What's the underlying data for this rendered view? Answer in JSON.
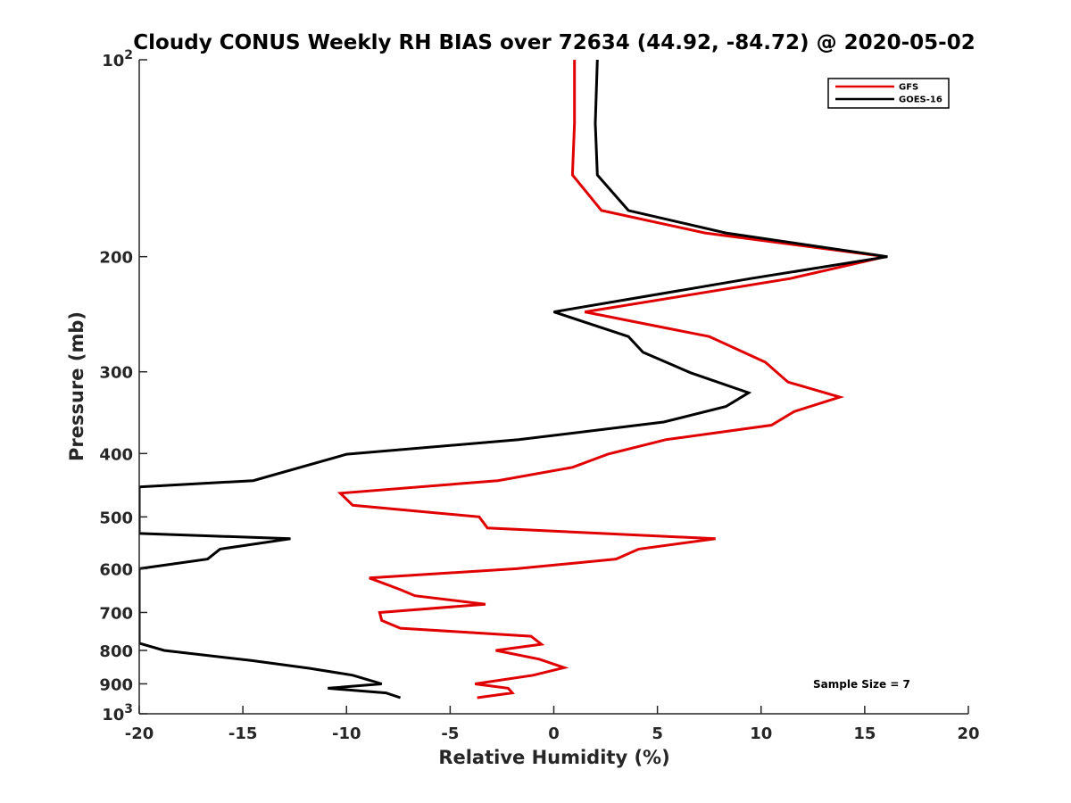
{
  "chart_data": {
    "type": "line",
    "title": "Cloudy CONUS Weekly RH BIAS over 72634 (44.92, -84.72) @ 2020-05-02",
    "xlabel": "Relative Humidity (%)",
    "ylabel": "Pressure (mb)",
    "xlim": [
      -20,
      20
    ],
    "ylim": [
      100,
      1000
    ],
    "yscale": "log",
    "y_reversed": true,
    "x_ticks": [
      "-20",
      "-15",
      "-10",
      "-5",
      "0",
      "5",
      "10",
      "15",
      "20"
    ],
    "y_ticks": [
      {
        "value": 100,
        "base": "10",
        "exp": "2"
      },
      {
        "value": 200,
        "label": "200"
      },
      {
        "value": 300,
        "label": "300"
      },
      {
        "value": 400,
        "label": "400"
      },
      {
        "value": 500,
        "label": "500"
      },
      {
        "value": 600,
        "label": "600"
      },
      {
        "value": 700,
        "label": "700"
      },
      {
        "value": 800,
        "label": "800"
      },
      {
        "value": 900,
        "label": "900"
      },
      {
        "value": 1000,
        "base": "10",
        "exp": "3"
      }
    ],
    "legend": {
      "location": "top-right"
    },
    "annotation": "Sample Size = 7",
    "series": [
      {
        "name": "GFS",
        "color": "#e00000",
        "points": [
          [
            1.0,
            100
          ],
          [
            1.0,
            125
          ],
          [
            0.9,
            150
          ],
          [
            2.3,
            170
          ],
          [
            7.3,
            184
          ],
          [
            16.0,
            200
          ],
          [
            11.4,
            216
          ],
          [
            1.5,
            243
          ],
          [
            7.5,
            265
          ],
          [
            10.2,
            290
          ],
          [
            11.3,
            311
          ],
          [
            13.8,
            328
          ],
          [
            11.6,
            345
          ],
          [
            10.5,
            362
          ],
          [
            5.4,
            381
          ],
          [
            2.6,
            401
          ],
          [
            0.9,
            420
          ],
          [
            -2.7,
            440
          ],
          [
            -10.3,
            460
          ],
          [
            -9.7,
            480
          ],
          [
            -3.6,
            500
          ],
          [
            -3.2,
            520
          ],
          [
            7.8,
            540
          ],
          [
            4.1,
            560
          ],
          [
            3.0,
            580
          ],
          [
            -1.8,
            600
          ],
          [
            -8.9,
            620
          ],
          [
            -7.4,
            646
          ],
          [
            -6.7,
            660
          ],
          [
            -3.3,
            680
          ],
          [
            -8.4,
            700
          ],
          [
            -8.3,
            720
          ],
          [
            -7.4,
            740
          ],
          [
            -1.1,
            761
          ],
          [
            -0.6,
            783
          ],
          [
            -2.8,
            800
          ],
          [
            -0.7,
            825
          ],
          [
            0.5,
            850
          ],
          [
            -1.0,
            873
          ],
          [
            -3.8,
            900
          ],
          [
            -2.2,
            914
          ],
          [
            -2.0,
            929
          ],
          [
            -3.7,
            945
          ]
        ]
      },
      {
        "name": "GOES-16",
        "color": "#000000",
        "points": [
          [
            2.1,
            100
          ],
          [
            2.0,
            125
          ],
          [
            2.1,
            150
          ],
          [
            3.6,
            170
          ],
          [
            8.3,
            184
          ],
          [
            16.1,
            200
          ],
          [
            9.5,
            216
          ],
          [
            0.0,
            243
          ],
          [
            3.6,
            265
          ],
          [
            4.3,
            280
          ],
          [
            6.6,
            301
          ],
          [
            9.4,
            323
          ],
          [
            8.3,
            339
          ],
          [
            5.3,
            358
          ],
          [
            -1.7,
            381
          ],
          [
            -10.0,
            401
          ],
          [
            -14.5,
            440
          ],
          [
            -20.0,
            450
          ],
          [
            -20.0,
            530
          ],
          [
            -12.7,
            540
          ],
          [
            -16.1,
            560
          ],
          [
            -16.7,
            580
          ],
          [
            -20.0,
            600
          ],
          [
            -20.0,
            780
          ],
          [
            -18.8,
            800
          ],
          [
            -14.6,
            829
          ],
          [
            -11.8,
            852
          ],
          [
            -9.7,
            873
          ],
          [
            -8.3,
            900
          ],
          [
            -10.9,
            914
          ],
          [
            -8.1,
            929
          ],
          [
            -7.4,
            945
          ]
        ]
      }
    ]
  }
}
